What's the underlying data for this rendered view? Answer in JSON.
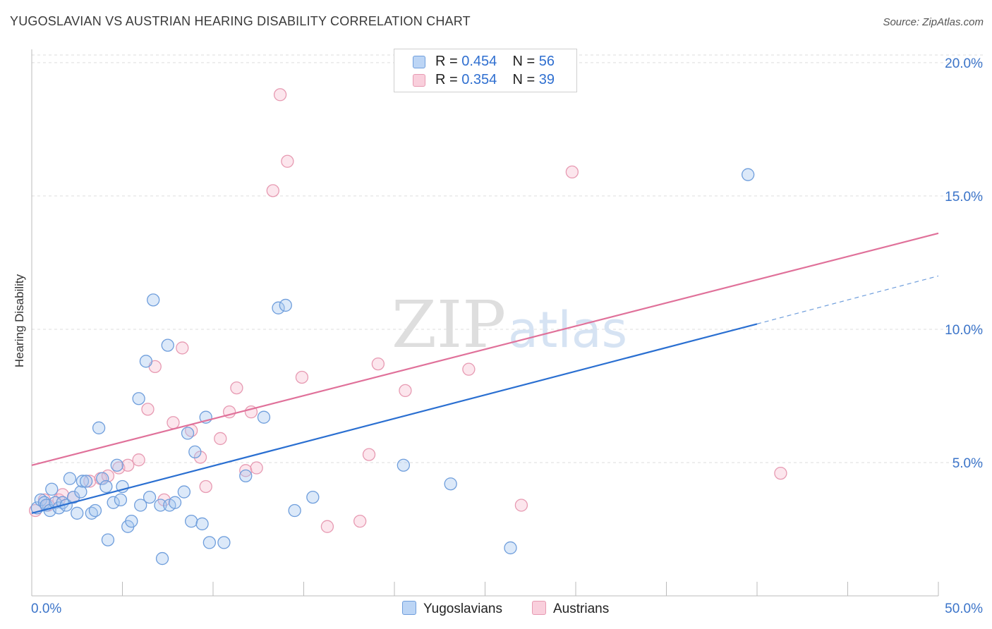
{
  "title": "YUGOSLAVIAN VS AUSTRIAN HEARING DISABILITY CORRELATION CHART",
  "source": "Source: ZipAtlas.com",
  "watermark": {
    "zip": "ZIP",
    "atlas": "atlas"
  },
  "legend_top": {
    "rows": [
      {
        "r_label": "R = ",
        "r_value": "0.454",
        "n_label": "N = ",
        "n_value": "56"
      },
      {
        "r_label": "R = ",
        "r_value": "0.354",
        "n_label": "N = ",
        "n_value": "39"
      }
    ]
  },
  "legend_bottom": [
    "Yugoslavians",
    "Austrians"
  ],
  "colors": {
    "yugo_fill": "#a8c8f0",
    "yugo_stroke": "#6f9edc",
    "yugo_line": "#2a6fd1",
    "aus_fill": "#f5b8cb",
    "aus_stroke": "#e79ab2",
    "aus_line": "#e0719a",
    "axis_label": "#3b74c9",
    "grid": "#dddddd"
  },
  "chart_data": {
    "type": "scatter",
    "title": "YUGOSLAVIAN VS AUSTRIAN HEARING DISABILITY CORRELATION CHART",
    "xlabel": "",
    "ylabel": "Hearing Disability",
    "xlim": [
      0,
      50
    ],
    "ylim": [
      0,
      20.5
    ],
    "x_tick_labels": [
      "0.0%",
      "50.0%"
    ],
    "y_ticks": [
      5,
      10,
      15,
      20
    ],
    "y_tick_labels": [
      "5.0%",
      "10.0%",
      "15.0%",
      "20.0%"
    ],
    "grid": "horizontal dashed",
    "legend": "top-center",
    "series": [
      {
        "name": "Yugoslavians",
        "points": [
          [
            0.3,
            3.3
          ],
          [
            0.5,
            3.6
          ],
          [
            0.7,
            3.5
          ],
          [
            0.8,
            3.4
          ],
          [
            1.0,
            3.2
          ],
          [
            1.1,
            4.0
          ],
          [
            1.3,
            3.5
          ],
          [
            1.5,
            3.3
          ],
          [
            1.7,
            3.5
          ],
          [
            1.9,
            3.4
          ],
          [
            2.1,
            4.4
          ],
          [
            2.3,
            3.7
          ],
          [
            2.5,
            3.1
          ],
          [
            2.7,
            3.9
          ],
          [
            2.8,
            4.3
          ],
          [
            3.0,
            4.3
          ],
          [
            3.3,
            3.1
          ],
          [
            3.5,
            3.2
          ],
          [
            3.7,
            6.3
          ],
          [
            3.9,
            4.4
          ],
          [
            4.1,
            4.1
          ],
          [
            4.2,
            2.1
          ],
          [
            4.5,
            3.5
          ],
          [
            4.7,
            4.9
          ],
          [
            4.9,
            3.6
          ],
          [
            5.0,
            4.1
          ],
          [
            5.3,
            2.6
          ],
          [
            5.5,
            2.8
          ],
          [
            5.9,
            7.4
          ],
          [
            6.0,
            3.4
          ],
          [
            6.3,
            8.8
          ],
          [
            6.5,
            3.7
          ],
          [
            6.7,
            11.1
          ],
          [
            7.1,
            3.4
          ],
          [
            7.2,
            1.4
          ],
          [
            7.5,
            9.4
          ],
          [
            7.6,
            3.4
          ],
          [
            7.9,
            3.5
          ],
          [
            8.4,
            3.9
          ],
          [
            8.6,
            6.1
          ],
          [
            8.8,
            2.8
          ],
          [
            9.0,
            5.4
          ],
          [
            9.4,
            2.7
          ],
          [
            9.6,
            6.7
          ],
          [
            9.8,
            2.0
          ],
          [
            10.6,
            2.0
          ],
          [
            11.8,
            4.5
          ],
          [
            12.8,
            6.7
          ],
          [
            13.6,
            10.8
          ],
          [
            14.0,
            10.9
          ],
          [
            14.5,
            3.2
          ],
          [
            15.5,
            3.7
          ],
          [
            20.5,
            4.9
          ],
          [
            23.1,
            4.2
          ],
          [
            26.4,
            1.8
          ],
          [
            39.5,
            15.8
          ]
        ],
        "trend": {
          "x": [
            0,
            40
          ],
          "y": [
            3.1,
            10.2
          ]
        },
        "trend_dashed_extension": {
          "x": [
            40,
            50
          ],
          "y": [
            10.2,
            12.0
          ]
        }
      },
      {
        "name": "Austrians",
        "points": [
          [
            0.2,
            3.2
          ],
          [
            0.7,
            3.6
          ],
          [
            0.9,
            3.4
          ],
          [
            1.5,
            3.6
          ],
          [
            1.7,
            3.8
          ],
          [
            2.3,
            3.7
          ],
          [
            3.2,
            4.3
          ],
          [
            3.8,
            4.4
          ],
          [
            4.2,
            4.5
          ],
          [
            4.8,
            4.8
          ],
          [
            5.3,
            4.9
          ],
          [
            5.9,
            5.1
          ],
          [
            6.4,
            7.0
          ],
          [
            6.8,
            8.6
          ],
          [
            7.3,
            3.6
          ],
          [
            7.8,
            6.5
          ],
          [
            8.3,
            9.3
          ],
          [
            8.8,
            6.2
          ],
          [
            9.3,
            5.2
          ],
          [
            9.6,
            4.1
          ],
          [
            10.4,
            5.9
          ],
          [
            10.9,
            6.9
          ],
          [
            11.3,
            7.8
          ],
          [
            11.8,
            4.7
          ],
          [
            12.1,
            6.9
          ],
          [
            12.4,
            4.8
          ],
          [
            13.3,
            15.2
          ],
          [
            13.7,
            18.8
          ],
          [
            14.1,
            16.3
          ],
          [
            14.9,
            8.2
          ],
          [
            16.3,
            2.6
          ],
          [
            18.1,
            2.8
          ],
          [
            18.6,
            5.3
          ],
          [
            19.1,
            8.7
          ],
          [
            20.6,
            7.7
          ],
          [
            24.1,
            8.5
          ],
          [
            27.0,
            3.4
          ],
          [
            29.8,
            15.9
          ],
          [
            41.3,
            4.6
          ]
        ],
        "trend": {
          "x": [
            0,
            50
          ],
          "y": [
            4.9,
            13.6
          ]
        }
      }
    ]
  }
}
